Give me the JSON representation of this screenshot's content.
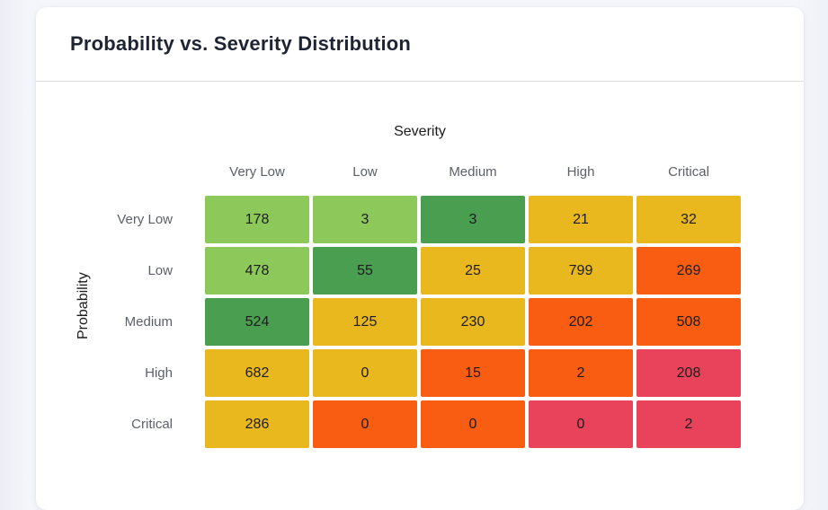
{
  "card": {
    "title": "Probability vs. Severity Distribution"
  },
  "chart_data": {
    "type": "heatmap",
    "title": "Probability vs. Severity Distribution",
    "xlabel": "Severity",
    "ylabel": "Probability",
    "columns": [
      "Very Low",
      "Low",
      "Medium",
      "High",
      "Critical"
    ],
    "rows": [
      "Very Low",
      "Low",
      "Medium",
      "High",
      "Critical"
    ],
    "values": [
      [
        178,
        3,
        3,
        21,
        32
      ],
      [
        478,
        55,
        25,
        799,
        269
      ],
      [
        524,
        125,
        230,
        202,
        508
      ],
      [
        682,
        0,
        15,
        2,
        208
      ],
      [
        286,
        0,
        0,
        0,
        2
      ]
    ],
    "cell_colors": [
      [
        "lightGreen",
        "lightGreen",
        "green",
        "amber",
        "amber"
      ],
      [
        "lightGreen",
        "green",
        "amber",
        "amber",
        "orange"
      ],
      [
        "green",
        "amber",
        "amber",
        "orange",
        "orange"
      ],
      [
        "amber",
        "amber",
        "orange",
        "orange",
        "red"
      ],
      [
        "amber",
        "orange",
        "orange",
        "red",
        "red"
      ]
    ],
    "palette": {
      "lightGreen": "#8DC85A",
      "green": "#4A9E4F",
      "amber": "#E9B81F",
      "orange": "#F85D11",
      "red": "#E8435A"
    },
    "legend": "none",
    "grid": "off"
  }
}
